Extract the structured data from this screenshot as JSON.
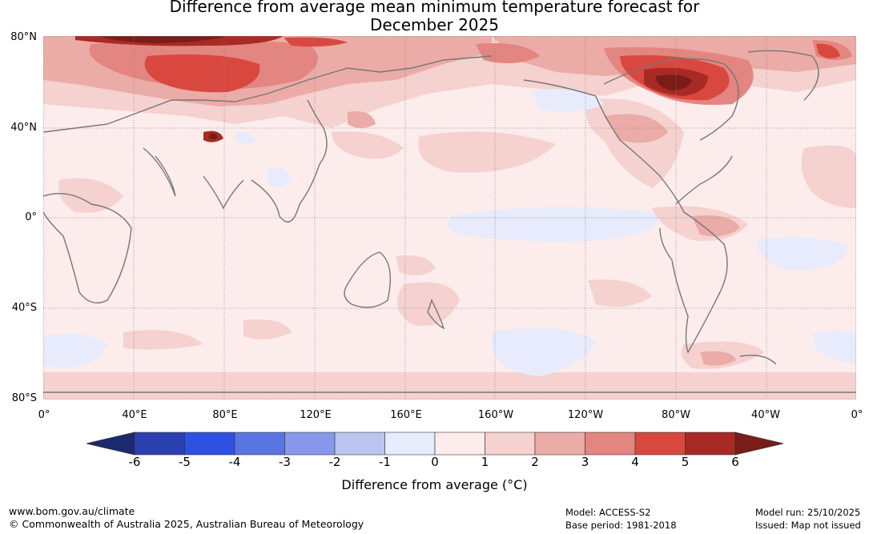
{
  "title_line1": "Difference from average mean minimum temperature forecast for",
  "title_line2": "December 2025",
  "lat_labels": [
    "80°N",
    "40°N",
    "0°",
    "40°S",
    "80°S"
  ],
  "lon_labels": [
    "0°",
    "40°E",
    "80°E",
    "120°E",
    "160°E",
    "160°W",
    "120°W",
    "80°W",
    "40°W",
    "0°"
  ],
  "colorbar": {
    "ticks": [
      "-6",
      "-5",
      "-4",
      "-3",
      "-2",
      "-1",
      "0",
      "1",
      "2",
      "3",
      "4",
      "5",
      "6"
    ],
    "label": "Difference from average (°C)",
    "colors": {
      "below_min": "#1b2a6e",
      "bins": [
        "#2a40b0",
        "#2f51e3",
        "#5a75e3",
        "#8898ea",
        "#bcc4f2",
        "#e7ebfb",
        "#fceceb",
        "#f5d1cf",
        "#ebaba7",
        "#e38580",
        "#d9483f",
        "#a82a24"
      ],
      "above_max": "#7a1c18"
    }
  },
  "footer": {
    "website": "www.bom.gov.au/climate",
    "copyright": "© Commonwealth of Australia 2025, Australian Bureau of Meteorology",
    "model": "Model: ACCESS-S2",
    "base_period": "Base period: 1981-2018",
    "model_run": "Model run: 25/10/2025",
    "issued": "Issued: Map not issued"
  }
}
